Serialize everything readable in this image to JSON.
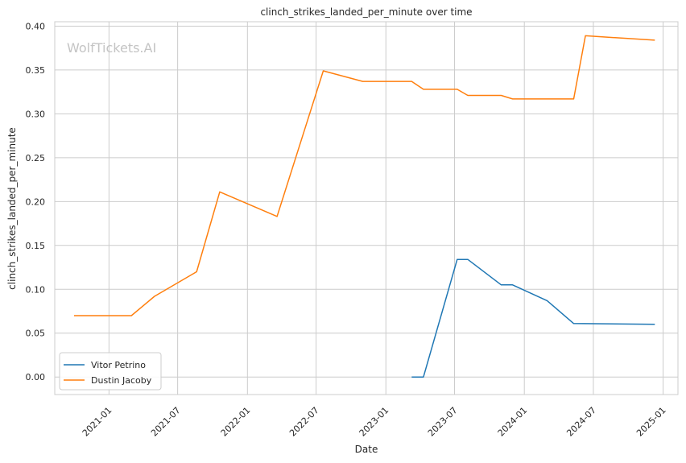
{
  "chart_data": {
    "type": "line",
    "title": "clinch_strikes_landed_per_minute over time",
    "xlabel": "Date",
    "ylabel": "clinch_strikes_landed_per_minute",
    "watermark": "WolfTickets.AI",
    "grid": true,
    "legend_position": "lower-left",
    "xlim": [
      "2020-08-11",
      "2025-02-09"
    ],
    "ylim": [
      -0.02,
      0.405
    ],
    "x_ticks": [
      "2021-01",
      "2021-07",
      "2022-01",
      "2022-07",
      "2023-01",
      "2023-07",
      "2024-01",
      "2024-07",
      "2025-01"
    ],
    "y_ticks": [
      "0.00",
      "0.05",
      "0.10",
      "0.15",
      "0.20",
      "0.25",
      "0.30",
      "0.35",
      "0.40"
    ],
    "series": [
      {
        "name": "Vitor Petrino",
        "color": "#1f77b4",
        "points": [
          [
            "2023-03-10",
            0.0
          ],
          [
            "2023-04-10",
            0.0
          ],
          [
            "2023-07-08",
            0.134
          ],
          [
            "2023-08-05",
            0.134
          ],
          [
            "2023-11-01",
            0.105
          ],
          [
            "2023-12-01",
            0.105
          ],
          [
            "2024-03-01",
            0.087
          ],
          [
            "2024-05-10",
            0.061
          ],
          [
            "2024-12-10",
            0.06
          ]
        ]
      },
      {
        "name": "Dustin Jacoby",
        "color": "#ff7f0e",
        "points": [
          [
            "2020-10-01",
            0.07
          ],
          [
            "2021-03-01",
            0.07
          ],
          [
            "2021-05-01",
            0.092
          ],
          [
            "2021-08-20",
            0.12
          ],
          [
            "2021-10-20",
            0.211
          ],
          [
            "2022-03-20",
            0.183
          ],
          [
            "2022-07-20",
            0.349
          ],
          [
            "2022-11-01",
            0.337
          ],
          [
            "2023-03-10",
            0.337
          ],
          [
            "2023-04-10",
            0.328
          ],
          [
            "2023-07-08",
            0.328
          ],
          [
            "2023-08-05",
            0.321
          ],
          [
            "2023-11-01",
            0.321
          ],
          [
            "2023-12-01",
            0.317
          ],
          [
            "2024-05-10",
            0.317
          ],
          [
            "2024-06-10",
            0.389
          ],
          [
            "2024-12-10",
            0.384
          ]
        ]
      }
    ]
  }
}
